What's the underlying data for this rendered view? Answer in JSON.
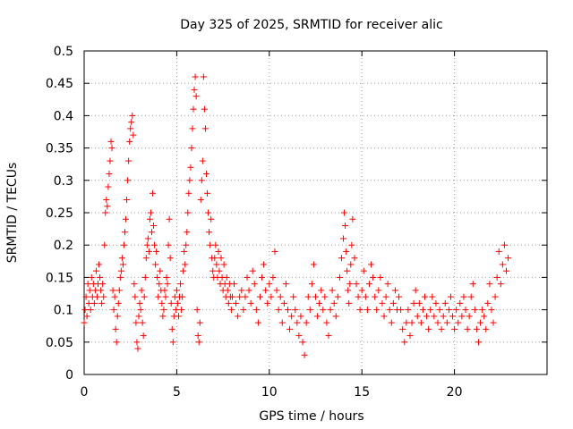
{
  "chart_data": {
    "type": "scatter",
    "title": "Day 325 of 2025, SRMTID for receiver alic",
    "xlabel": "GPS time / hours",
    "ylabel": "SRMTID / TECUs",
    "xlim": [
      0,
      25
    ],
    "ylim": [
      0,
      0.5
    ],
    "xticks": [
      0,
      5,
      10,
      15,
      20
    ],
    "xtick_labels": [
      "0",
      "5",
      "10",
      "15",
      "20"
    ],
    "yticks": [
      0,
      0.05,
      0.1,
      0.15,
      0.2,
      0.25,
      0.3,
      0.35,
      0.4,
      0.45,
      0.5
    ],
    "ytick_labels": [
      "0",
      "0.05",
      "0.1",
      "0.15",
      "0.2",
      "0.25",
      "0.3",
      "0.35",
      "0.4",
      "0.45",
      "0.5"
    ],
    "grid": true,
    "marker": "+",
    "marker_color": "#ff0000",
    "series": [
      {
        "values_source": "approximate trace read off the plot",
        "points": [
          [
            0.0,
            0.08
          ],
          [
            0.05,
            0.1
          ],
          [
            0.1,
            0.12
          ],
          [
            0.15,
            0.09
          ],
          [
            0.2,
            0.14
          ],
          [
            0.25,
            0.11
          ],
          [
            0.3,
            0.13
          ],
          [
            0.35,
            0.1
          ],
          [
            0.4,
            0.15
          ],
          [
            0.45,
            0.12
          ],
          [
            0.5,
            0.14
          ],
          [
            0.55,
            0.11
          ],
          [
            0.6,
            0.13
          ],
          [
            0.65,
            0.16
          ],
          [
            0.7,
            0.12
          ],
          [
            0.75,
            0.14
          ],
          [
            0.8,
            0.17
          ],
          [
            0.85,
            0.15
          ],
          [
            0.9,
            0.13
          ],
          [
            0.95,
            0.11
          ],
          [
            1.0,
            0.14
          ],
          [
            1.05,
            0.12
          ],
          [
            1.1,
            0.2
          ],
          [
            1.15,
            0.25
          ],
          [
            1.2,
            0.27
          ],
          [
            1.25,
            0.26
          ],
          [
            1.3,
            0.29
          ],
          [
            1.35,
            0.31
          ],
          [
            1.4,
            0.33
          ],
          [
            1.45,
            0.36
          ],
          [
            1.5,
            0.35
          ],
          [
            1.55,
            0.13
          ],
          [
            1.6,
            0.1
          ],
          [
            1.65,
            0.12
          ],
          [
            1.7,
            0.07
          ],
          [
            1.75,
            0.05
          ],
          [
            1.8,
            0.09
          ],
          [
            1.85,
            0.11
          ],
          [
            1.9,
            0.13
          ],
          [
            1.95,
            0.15
          ],
          [
            2.0,
            0.16
          ],
          [
            2.05,
            0.18
          ],
          [
            2.1,
            0.17
          ],
          [
            2.15,
            0.2
          ],
          [
            2.2,
            0.22
          ],
          [
            2.25,
            0.24
          ],
          [
            2.3,
            0.27
          ],
          [
            2.35,
            0.3
          ],
          [
            2.4,
            0.33
          ],
          [
            2.45,
            0.36
          ],
          [
            2.5,
            0.38
          ],
          [
            2.55,
            0.39
          ],
          [
            2.6,
            0.4
          ],
          [
            2.65,
            0.37
          ],
          [
            2.7,
            0.14
          ],
          [
            2.75,
            0.12
          ],
          [
            2.8,
            0.08
          ],
          [
            2.85,
            0.05
          ],
          [
            2.9,
            0.04
          ],
          [
            2.95,
            0.09
          ],
          [
            3.0,
            0.11
          ],
          [
            3.05,
            0.1
          ],
          [
            3.1,
            0.13
          ],
          [
            3.15,
            0.08
          ],
          [
            3.2,
            0.06
          ],
          [
            3.25,
            0.12
          ],
          [
            3.3,
            0.15
          ],
          [
            3.35,
            0.18
          ],
          [
            3.4,
            0.2
          ],
          [
            3.45,
            0.21
          ],
          [
            3.5,
            0.19
          ],
          [
            3.55,
            0.24
          ],
          [
            3.6,
            0.25
          ],
          [
            3.65,
            0.22
          ],
          [
            3.7,
            0.28
          ],
          [
            3.75,
            0.23
          ],
          [
            3.8,
            0.2
          ],
          [
            3.85,
            0.17
          ],
          [
            3.9,
            0.19
          ],
          [
            3.95,
            0.15
          ],
          [
            4.0,
            0.12
          ],
          [
            4.05,
            0.14
          ],
          [
            4.1,
            0.16
          ],
          [
            4.15,
            0.13
          ],
          [
            4.2,
            0.11
          ],
          [
            4.25,
            0.09
          ],
          [
            4.3,
            0.1
          ],
          [
            4.35,
            0.13
          ],
          [
            4.4,
            0.12
          ],
          [
            4.45,
            0.15
          ],
          [
            4.5,
            0.14
          ],
          [
            4.55,
            0.2
          ],
          [
            4.6,
            0.24
          ],
          [
            4.65,
            0.18
          ],
          [
            4.7,
            0.11
          ],
          [
            4.75,
            0.07
          ],
          [
            4.8,
            0.05
          ],
          [
            4.85,
            0.09
          ],
          [
            4.9,
            0.12
          ],
          [
            4.95,
            0.1
          ],
          [
            5.0,
            0.13
          ],
          [
            5.05,
            0.11
          ],
          [
            5.1,
            0.09
          ],
          [
            5.15,
            0.12
          ],
          [
            5.2,
            0.14
          ],
          [
            5.25,
            0.1
          ],
          [
            5.3,
            0.12
          ],
          [
            5.35,
            0.16
          ],
          [
            5.4,
            0.19
          ],
          [
            5.45,
            0.17
          ],
          [
            5.5,
            0.2
          ],
          [
            5.55,
            0.22
          ],
          [
            5.6,
            0.25
          ],
          [
            5.65,
            0.28
          ],
          [
            5.7,
            0.3
          ],
          [
            5.75,
            0.32
          ],
          [
            5.8,
            0.35
          ],
          [
            5.85,
            0.38
          ],
          [
            5.9,
            0.41
          ],
          [
            5.95,
            0.44
          ],
          [
            6.0,
            0.46
          ],
          [
            6.05,
            0.43
          ],
          [
            6.1,
            0.1
          ],
          [
            6.15,
            0.06
          ],
          [
            6.2,
            0.05
          ],
          [
            6.25,
            0.08
          ],
          [
            6.3,
            0.27
          ],
          [
            6.35,
            0.3
          ],
          [
            6.4,
            0.33
          ],
          [
            6.45,
            0.46
          ],
          [
            6.5,
            0.41
          ],
          [
            6.55,
            0.38
          ],
          [
            6.6,
            0.31
          ],
          [
            6.65,
            0.28
          ],
          [
            6.7,
            0.25
          ],
          [
            6.75,
            0.22
          ],
          [
            6.8,
            0.2
          ],
          [
            6.85,
            0.24
          ],
          [
            6.9,
            0.18
          ],
          [
            6.95,
            0.16
          ],
          [
            7.0,
            0.15
          ],
          [
            7.05,
            0.18
          ],
          [
            7.1,
            0.2
          ],
          [
            7.15,
            0.17
          ],
          [
            7.2,
            0.15
          ],
          [
            7.25,
            0.19
          ],
          [
            7.3,
            0.16
          ],
          [
            7.35,
            0.14
          ],
          [
            7.4,
            0.18
          ],
          [
            7.45,
            0.15
          ],
          [
            7.5,
            0.13
          ],
          [
            7.55,
            0.17
          ],
          [
            7.6,
            0.14
          ],
          [
            7.65,
            0.12
          ],
          [
            7.7,
            0.15
          ],
          [
            7.75,
            0.13
          ],
          [
            7.8,
            0.11
          ],
          [
            7.85,
            0.14
          ],
          [
            7.9,
            0.12
          ],
          [
            7.95,
            0.1
          ],
          [
            8.0,
            0.12
          ],
          [
            8.1,
            0.14
          ],
          [
            8.2,
            0.11
          ],
          [
            8.3,
            0.09
          ],
          [
            8.4,
            0.12
          ],
          [
            8.5,
            0.13
          ],
          [
            8.6,
            0.1
          ],
          [
            8.7,
            0.12
          ],
          [
            8.8,
            0.15
          ],
          [
            8.9,
            0.13
          ],
          [
            9.0,
            0.11
          ],
          [
            9.1,
            0.16
          ],
          [
            9.2,
            0.14
          ],
          [
            9.3,
            0.1
          ],
          [
            9.4,
            0.08
          ],
          [
            9.5,
            0.12
          ],
          [
            9.6,
            0.15
          ],
          [
            9.7,
            0.17
          ],
          [
            9.8,
            0.13
          ],
          [
            9.9,
            0.11
          ],
          [
            10.0,
            0.14
          ],
          [
            10.1,
            0.12
          ],
          [
            10.2,
            0.15
          ],
          [
            10.3,
            0.19
          ],
          [
            10.4,
            0.13
          ],
          [
            10.5,
            0.1
          ],
          [
            10.6,
            0.12
          ],
          [
            10.7,
            0.08
          ],
          [
            10.8,
            0.11
          ],
          [
            10.9,
            0.14
          ],
          [
            11.0,
            0.1
          ],
          [
            11.1,
            0.07
          ],
          [
            11.2,
            0.09
          ],
          [
            11.3,
            0.12
          ],
          [
            11.4,
            0.1
          ],
          [
            11.5,
            0.08
          ],
          [
            11.6,
            0.06
          ],
          [
            11.7,
            0.09
          ],
          [
            11.8,
            0.05
          ],
          [
            11.9,
            0.03
          ],
          [
            12.0,
            0.08
          ],
          [
            12.1,
            0.12
          ],
          [
            12.2,
            0.1
          ],
          [
            12.3,
            0.14
          ],
          [
            12.4,
            0.17
          ],
          [
            12.5,
            0.12
          ],
          [
            12.6,
            0.09
          ],
          [
            12.7,
            0.11
          ],
          [
            12.8,
            0.13
          ],
          [
            12.9,
            0.1
          ],
          [
            13.0,
            0.12
          ],
          [
            13.1,
            0.08
          ],
          [
            13.2,
            0.06
          ],
          [
            13.3,
            0.1
          ],
          [
            13.4,
            0.13
          ],
          [
            13.5,
            0.11
          ],
          [
            13.6,
            0.09
          ],
          [
            13.7,
            0.12
          ],
          [
            13.8,
            0.15
          ],
          [
            13.9,
            0.18
          ],
          [
            14.0,
            0.21
          ],
          [
            14.05,
            0.25
          ],
          [
            14.1,
            0.23
          ],
          [
            14.15,
            0.19
          ],
          [
            14.2,
            0.16
          ],
          [
            14.25,
            0.13
          ],
          [
            14.3,
            0.11
          ],
          [
            14.35,
            0.14
          ],
          [
            14.4,
            0.17
          ],
          [
            14.45,
            0.2
          ],
          [
            14.5,
            0.24
          ],
          [
            14.6,
            0.18
          ],
          [
            14.7,
            0.14
          ],
          [
            14.8,
            0.12
          ],
          [
            14.9,
            0.1
          ],
          [
            15.0,
            0.13
          ],
          [
            15.1,
            0.16
          ],
          [
            15.2,
            0.12
          ],
          [
            15.3,
            0.1
          ],
          [
            15.4,
            0.14
          ],
          [
            15.5,
            0.17
          ],
          [
            15.6,
            0.15
          ],
          [
            15.7,
            0.12
          ],
          [
            15.8,
            0.1
          ],
          [
            15.9,
            0.13
          ],
          [
            16.0,
            0.15
          ],
          [
            16.1,
            0.11
          ],
          [
            16.2,
            0.09
          ],
          [
            16.3,
            0.12
          ],
          [
            16.4,
            0.14
          ],
          [
            16.5,
            0.1
          ],
          [
            16.6,
            0.08
          ],
          [
            16.7,
            0.11
          ],
          [
            16.8,
            0.13
          ],
          [
            16.9,
            0.1
          ],
          [
            17.0,
            0.12
          ],
          [
            17.1,
            0.1
          ],
          [
            17.2,
            0.07
          ],
          [
            17.3,
            0.05
          ],
          [
            17.4,
            0.08
          ],
          [
            17.5,
            0.1
          ],
          [
            17.6,
            0.06
          ],
          [
            17.7,
            0.08
          ],
          [
            17.8,
            0.11
          ],
          [
            17.9,
            0.13
          ],
          [
            18.0,
            0.09
          ],
          [
            18.1,
            0.11
          ],
          [
            18.2,
            0.08
          ],
          [
            18.3,
            0.1
          ],
          [
            18.4,
            0.12
          ],
          [
            18.5,
            0.09
          ],
          [
            18.6,
            0.07
          ],
          [
            18.7,
            0.1
          ],
          [
            18.8,
            0.12
          ],
          [
            18.9,
            0.09
          ],
          [
            19.0,
            0.11
          ],
          [
            19.1,
            0.08
          ],
          [
            19.2,
            0.1
          ],
          [
            19.3,
            0.07
          ],
          [
            19.4,
            0.09
          ],
          [
            19.5,
            0.11
          ],
          [
            19.6,
            0.08
          ],
          [
            19.7,
            0.1
          ],
          [
            19.8,
            0.12
          ],
          [
            19.9,
            0.09
          ],
          [
            20.0,
            0.07
          ],
          [
            20.1,
            0.1
          ],
          [
            20.2,
            0.08
          ],
          [
            20.3,
            0.11
          ],
          [
            20.4,
            0.09
          ],
          [
            20.5,
            0.12
          ],
          [
            20.6,
            0.1
          ],
          [
            20.7,
            0.07
          ],
          [
            20.8,
            0.09
          ],
          [
            20.9,
            0.12
          ],
          [
            21.0,
            0.14
          ],
          [
            21.1,
            0.1
          ],
          [
            21.2,
            0.07
          ],
          [
            21.3,
            0.05
          ],
          [
            21.4,
            0.08
          ],
          [
            21.5,
            0.1
          ],
          [
            21.6,
            0.09
          ],
          [
            21.7,
            0.07
          ],
          [
            21.8,
            0.11
          ],
          [
            21.9,
            0.14
          ],
          [
            22.0,
            0.1
          ],
          [
            22.1,
            0.08
          ],
          [
            22.2,
            0.12
          ],
          [
            22.3,
            0.15
          ],
          [
            22.4,
            0.19
          ],
          [
            22.5,
            0.14
          ],
          [
            22.6,
            0.17
          ],
          [
            22.7,
            0.2
          ],
          [
            22.8,
            0.16
          ],
          [
            22.9,
            0.18
          ]
        ]
      }
    ]
  }
}
